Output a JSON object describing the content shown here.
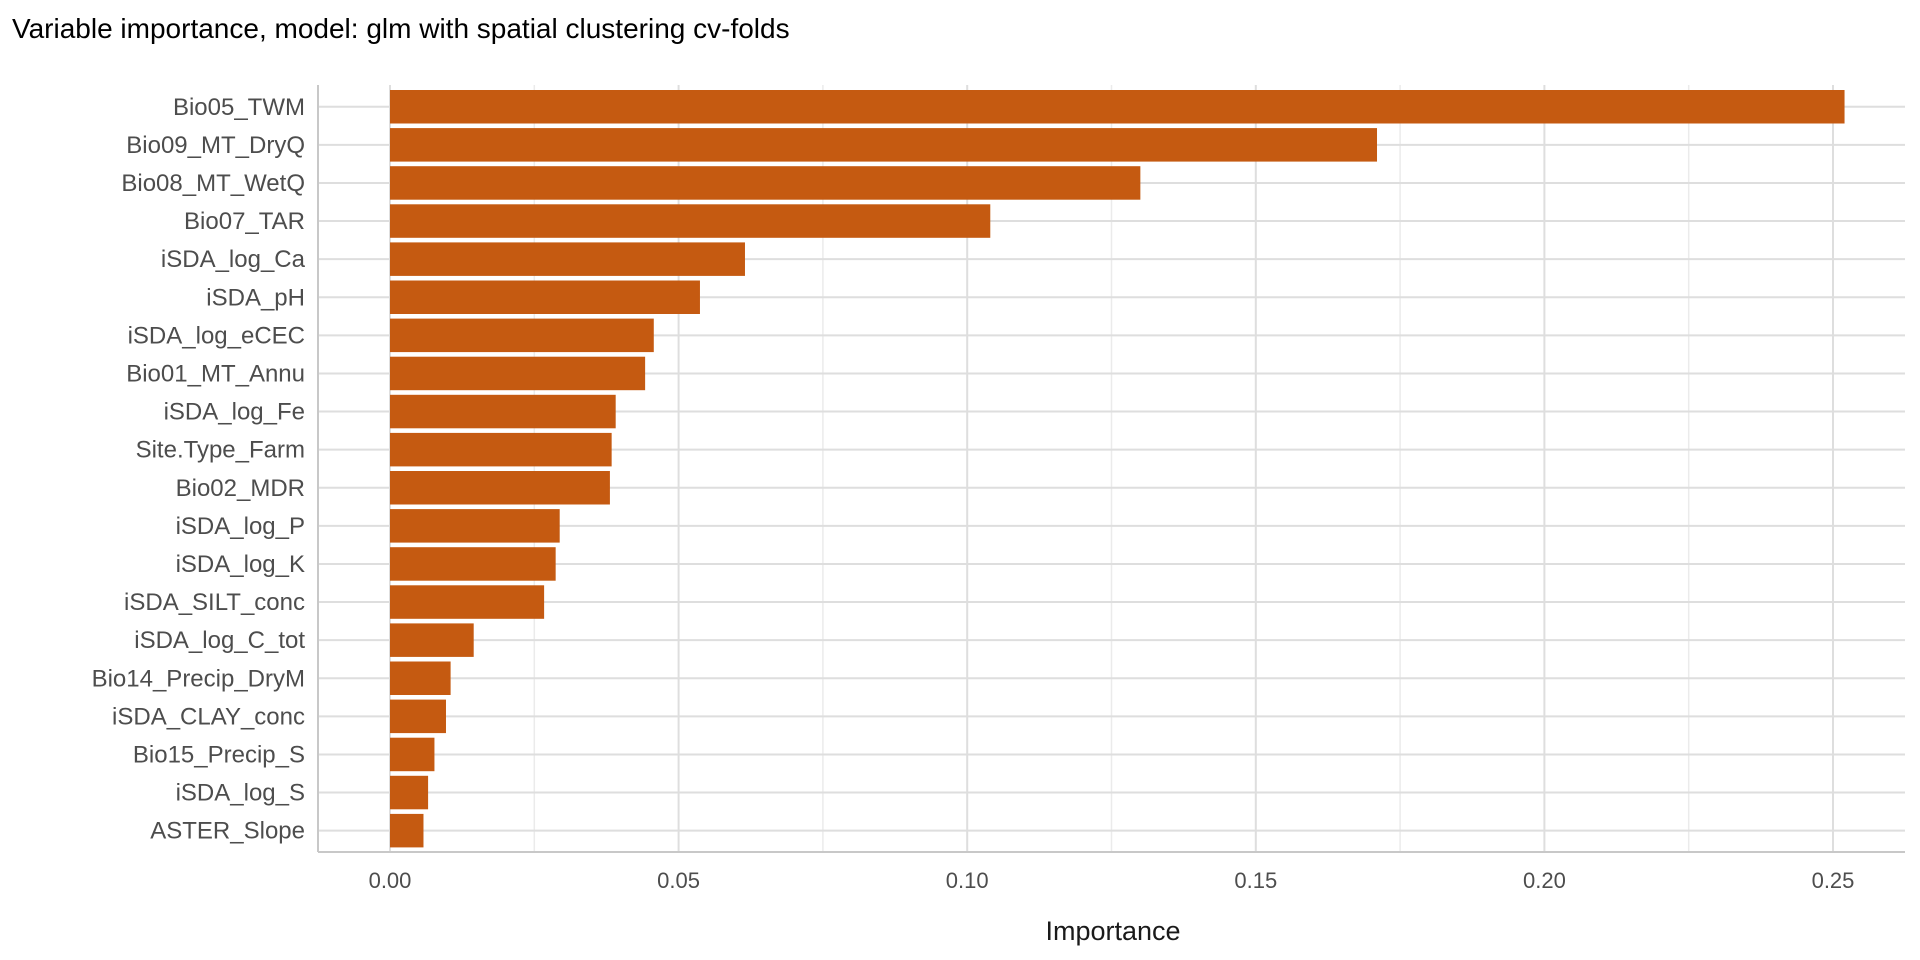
{
  "chart_data": {
    "type": "bar",
    "orientation": "horizontal",
    "title": "Variable importance, model: glm with spatial clustering cv-folds",
    "xlabel": "Importance",
    "ylabel": "",
    "xlim": [
      -0.0125,
      0.265
    ],
    "xticks": [
      0.0,
      0.05,
      0.1,
      0.15,
      0.2,
      0.25
    ],
    "xtick_labels": [
      "0.00",
      "0.05",
      "0.10",
      "0.15",
      "0.20",
      "0.25"
    ],
    "grid": true,
    "bar_color": "#c55a11",
    "categories": [
      "Bio05_TWM",
      "Bio09_MT_DryQ",
      "Bio08_MT_WetQ",
      "Bio07_TAR",
      "iSDA_log_Ca",
      "iSDA_pH",
      "iSDA_log_eCEC",
      "Bio01_MT_Annu",
      "iSDA_log_Fe",
      "Site.Type_Farm",
      "Bio02_MDR",
      "iSDA_log_P",
      "iSDA_log_K",
      "iSDA_SILT_conc",
      "iSDA_log_C_tot",
      "Bio14_Precip_DryM",
      "iSDA_CLAY_conc",
      "Bio15_Precip_S",
      "iSDA_log_S",
      "ASTER_Slope"
    ],
    "values": [
      0.252,
      0.171,
      0.13,
      0.104,
      0.0615,
      0.0537,
      0.0457,
      0.0442,
      0.0391,
      0.0384,
      0.0381,
      0.0294,
      0.0287,
      0.0267,
      0.0145,
      0.0105,
      0.0097,
      0.0077,
      0.0066,
      0.0058
    ]
  }
}
